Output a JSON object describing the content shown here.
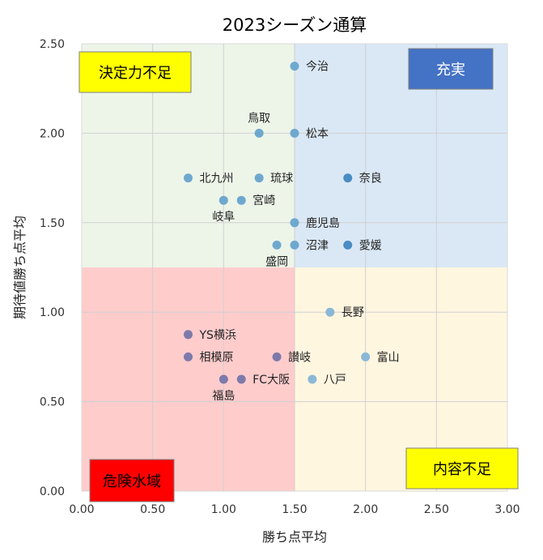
{
  "chart_data": {
    "type": "scatter",
    "title": "2023シーズン通算",
    "xlabel": "勝ち点平均",
    "ylabel": "期待値勝ち点平均",
    "xlim": [
      0,
      3
    ],
    "ylim": [
      0,
      2.5
    ],
    "xticks": [
      "0.00",
      "0.50",
      "1.00",
      "1.50",
      "2.00",
      "2.50",
      "3.00"
    ],
    "yticks": [
      "0.00",
      "0.50",
      "1.00",
      "1.50",
      "2.00",
      "2.50"
    ],
    "grid": true,
    "quadrants": [
      {
        "name": "upper-left",
        "x": [
          0,
          1.5
        ],
        "y": [
          1.25,
          2.5
        ],
        "color": "#edf5e9"
      },
      {
        "name": "upper-right",
        "x": [
          1.5,
          3
        ],
        "y": [
          1.25,
          2.5
        ],
        "color": "#dae8f6"
      },
      {
        "name": "lower-left",
        "x": [
          0,
          1.5
        ],
        "y": [
          0,
          1.25
        ],
        "color": "#ffcccc"
      },
      {
        "name": "lower-right",
        "x": [
          1.5,
          3
        ],
        "y": [
          0,
          1.25
        ],
        "color": "#fff6e0"
      }
    ],
    "quadrant_labels": [
      {
        "text": "決定力不足",
        "quadrant": "upper-left",
        "bg": "#ffff00",
        "fg": "#000000"
      },
      {
        "text": "充実",
        "quadrant": "upper-right",
        "bg": "#4472c4",
        "fg": "#ffffff"
      },
      {
        "text": "危険水域",
        "quadrant": "lower-left",
        "bg": "#ff0000",
        "fg": "#000000"
      },
      {
        "text": "内容不足",
        "quadrant": "lower-right",
        "bg": "#ffff00",
        "fg": "#000000"
      }
    ],
    "points": [
      {
        "label": "今治",
        "x": 1.5,
        "y": 2.375,
        "color": "#6fa8cf",
        "label_pos": "right"
      },
      {
        "label": "鳥取",
        "x": 1.25,
        "y": 2.0,
        "color": "#6fa8cf",
        "label_pos": "above"
      },
      {
        "label": "松本",
        "x": 1.5,
        "y": 2.0,
        "color": "#6fa8cf",
        "label_pos": "right"
      },
      {
        "label": "北九州",
        "x": 0.75,
        "y": 1.75,
        "color": "#6fa8cf",
        "label_pos": "right"
      },
      {
        "label": "琉球",
        "x": 1.25,
        "y": 1.75,
        "color": "#6fa8cf",
        "label_pos": "right"
      },
      {
        "label": "奈良",
        "x": 1.875,
        "y": 1.75,
        "color": "#4a8cc4",
        "label_pos": "right"
      },
      {
        "label": "岐阜",
        "x": 1.0,
        "y": 1.625,
        "color": "#6fa8cf",
        "label_pos": "below"
      },
      {
        "label": "宮崎",
        "x": 1.125,
        "y": 1.625,
        "color": "#6fa8cf",
        "label_pos": "right"
      },
      {
        "label": "鹿児島",
        "x": 1.5,
        "y": 1.5,
        "color": "#6fa8cf",
        "label_pos": "right"
      },
      {
        "label": "盛岡",
        "x": 1.375,
        "y": 1.375,
        "color": "#6fa8cf",
        "label_pos": "below"
      },
      {
        "label": "沼津",
        "x": 1.5,
        "y": 1.375,
        "color": "#6fa8cf",
        "label_pos": "right"
      },
      {
        "label": "愛媛",
        "x": 1.875,
        "y": 1.375,
        "color": "#4a8cc4",
        "label_pos": "right"
      },
      {
        "label": "長野",
        "x": 1.75,
        "y": 1.0,
        "color": "#8ab8d6",
        "label_pos": "right"
      },
      {
        "label": "YS横浜",
        "x": 0.75,
        "y": 0.875,
        "color": "#7d7aab",
        "label_pos": "right"
      },
      {
        "label": "相模原",
        "x": 0.75,
        "y": 0.75,
        "color": "#7d7aab",
        "label_pos": "right"
      },
      {
        "label": "讃岐",
        "x": 1.375,
        "y": 0.75,
        "color": "#7d7aab",
        "label_pos": "right"
      },
      {
        "label": "富山",
        "x": 2.0,
        "y": 0.75,
        "color": "#8ab8d6",
        "label_pos": "right"
      },
      {
        "label": "福島",
        "x": 1.0,
        "y": 0.625,
        "color": "#7d7aab",
        "label_pos": "below"
      },
      {
        "label": "FC大阪",
        "x": 1.125,
        "y": 0.625,
        "color": "#7d7aab",
        "label_pos": "right"
      },
      {
        "label": "八戸",
        "x": 1.625,
        "y": 0.625,
        "color": "#8ab8d6",
        "label_pos": "right"
      }
    ]
  }
}
